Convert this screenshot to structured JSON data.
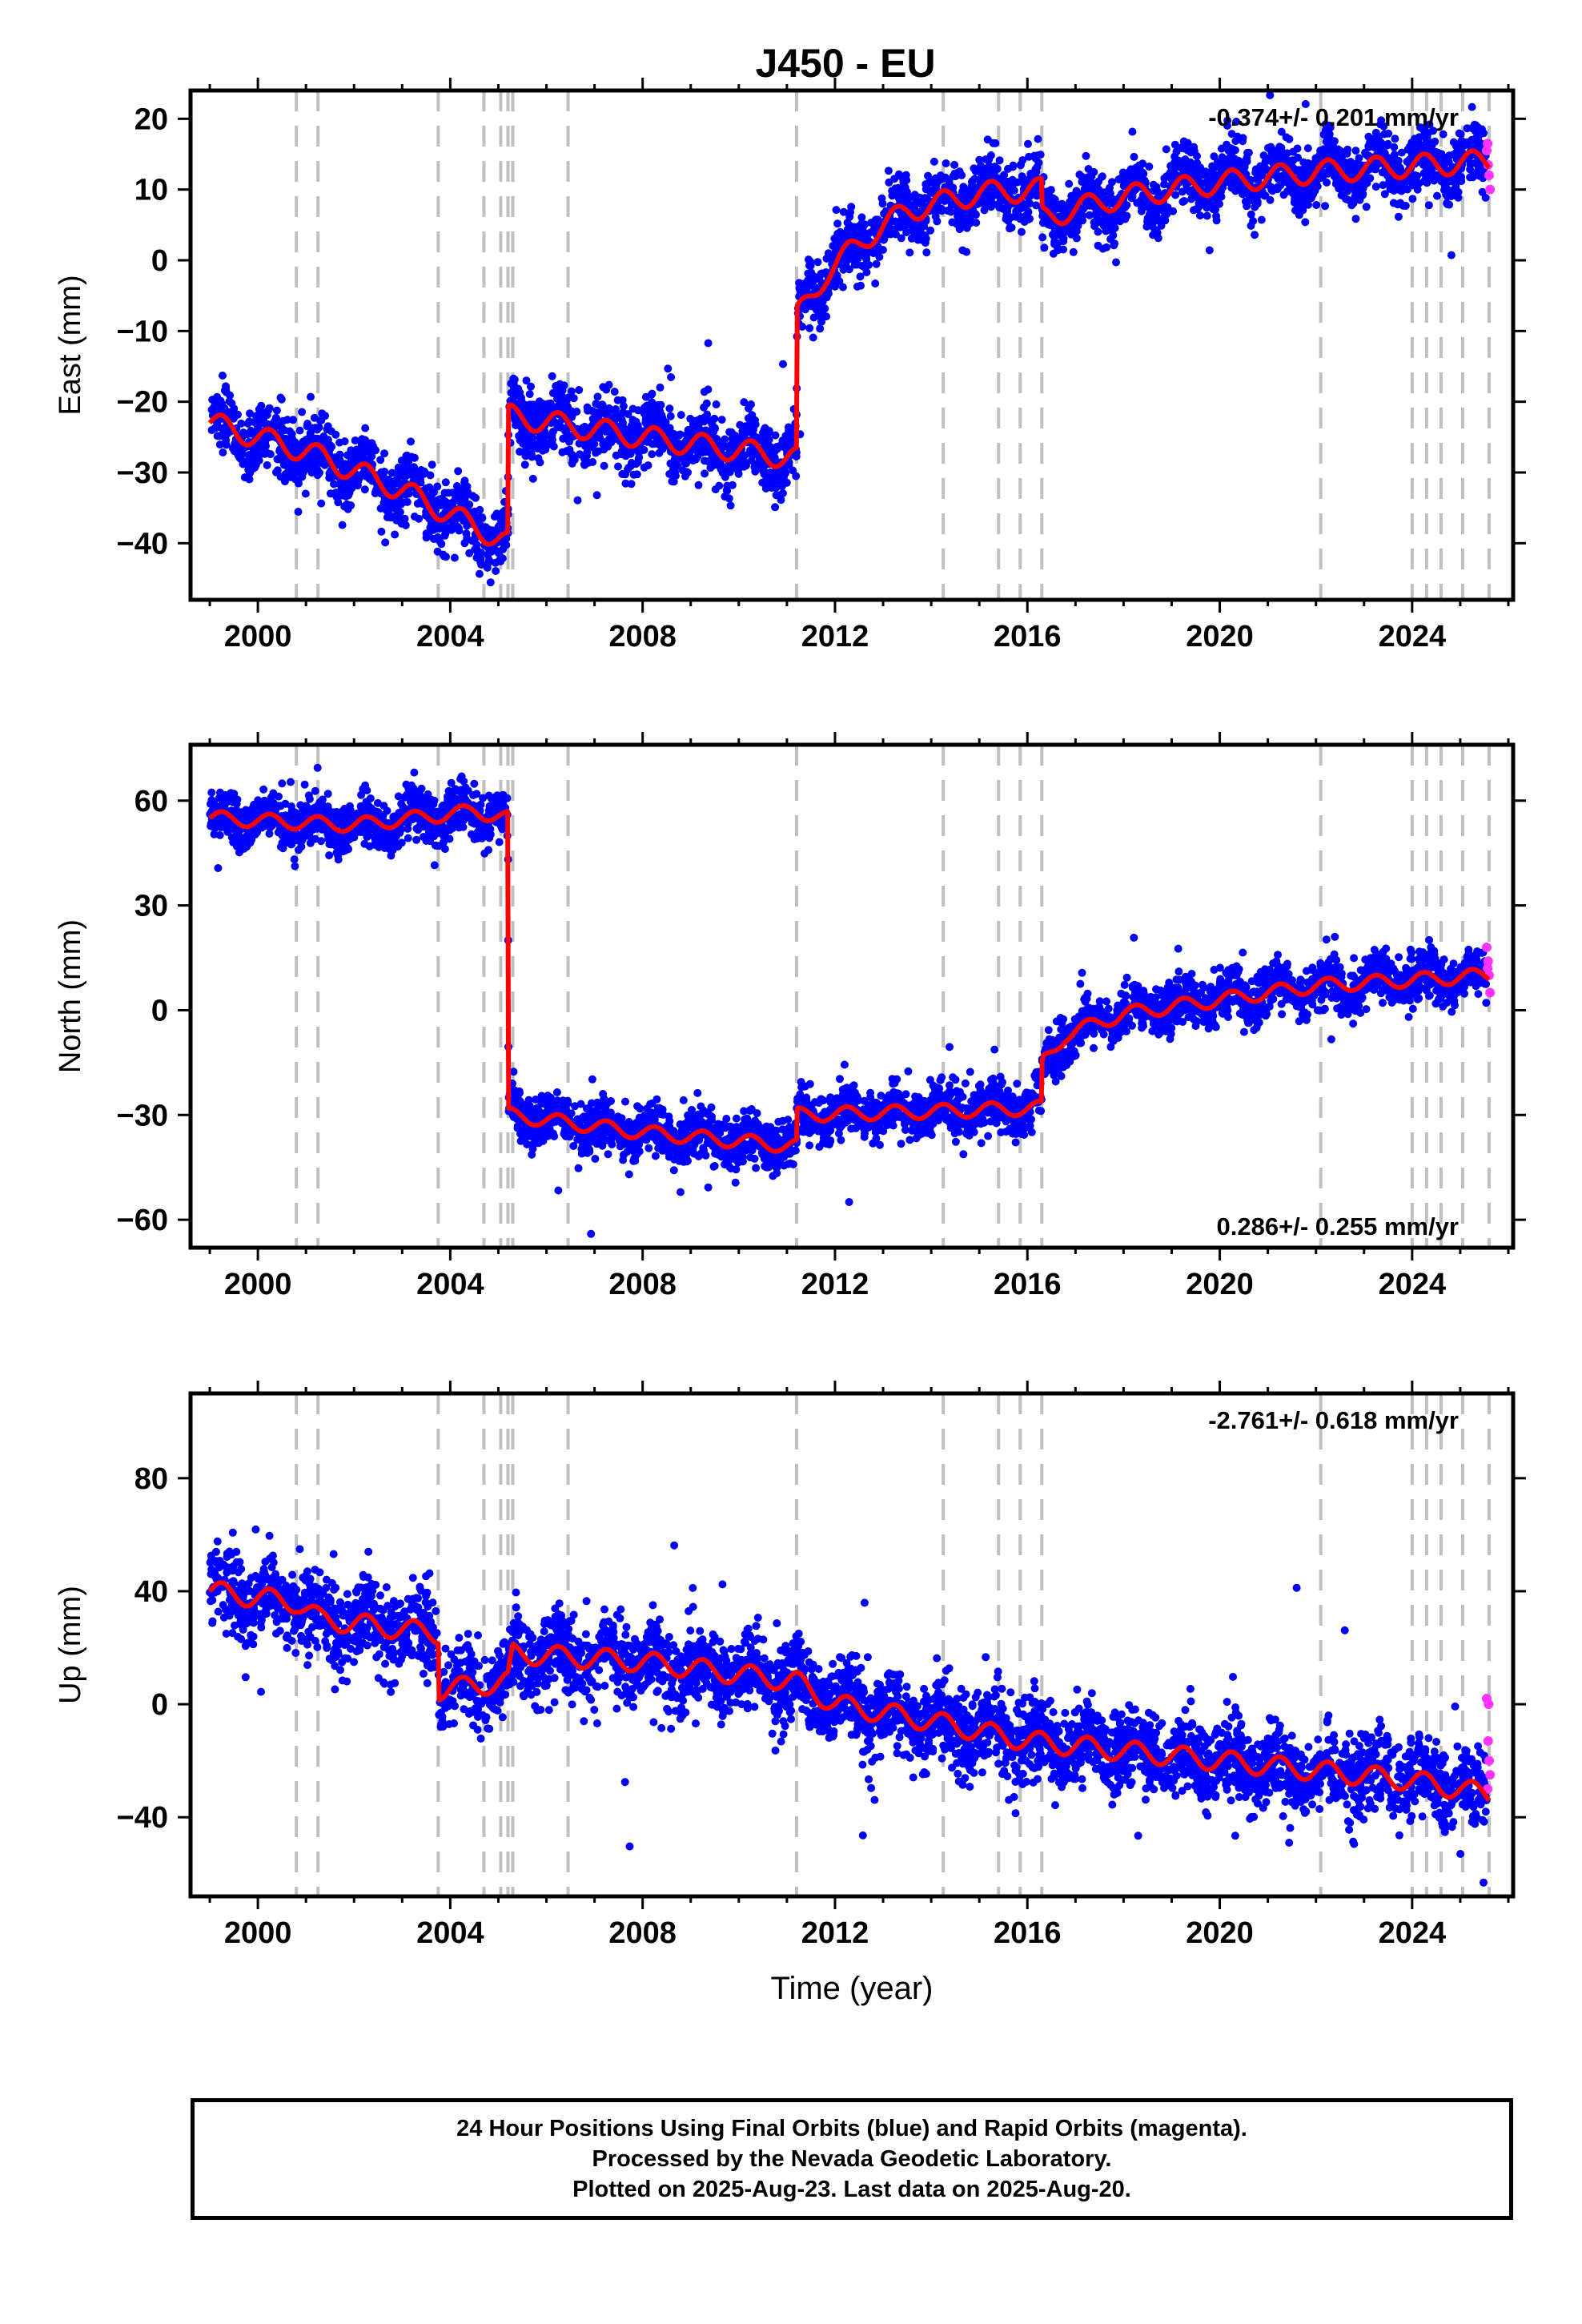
{
  "figure": {
    "title": "J450 - EU",
    "footer_lines": [
      "24 Hour Positions Using Final Orbits (blue) and Rapid Orbits (magenta).",
      "Processed by the Nevada Geodetic Laboratory.",
      "Plotted on 2025-Aug-23. Last data on 2025-Aug-20."
    ],
    "colors": {
      "final": "#0000ff",
      "rapid": "#ff33ff",
      "model": "#ff0000",
      "events": "#bfbfbf"
    }
  },
  "chart_data": [
    {
      "type": "scatter",
      "ylabel": "East (mm)",
      "xlabel": "",
      "rate_label": "-0.374+/- 0.201 mm/yr",
      "rate_position": "top-right",
      "xlim": [
        1998.6,
        2026.1
      ],
      "ylim": [
        -48,
        24
      ],
      "xticks": [
        2000,
        2004,
        2008,
        2012,
        2016,
        2020,
        2024
      ],
      "yticks": [
        -40,
        -30,
        -20,
        -10,
        0,
        10,
        20
      ],
      "event_lines": [
        2000.8,
        2001.25,
        2003.75,
        2004.7,
        2005.05,
        2005.2,
        2005.3,
        2006.45,
        2011.2,
        2014.25,
        2015.4,
        2015.85,
        2016.3,
        2022.1,
        2024.0,
        2024.3,
        2024.6,
        2025.05,
        2025.6
      ],
      "model_trend": [
        [
          1999.0,
          -23
        ],
        [
          2001.0,
          -27
        ],
        [
          2003.0,
          -32.5
        ],
        [
          2005.2,
          -40
        ],
        [
          2005.21,
          -22
        ],
        [
          2008.0,
          -25
        ],
        [
          2011.2,
          -28
        ],
        [
          2011.21,
          -8
        ],
        [
          2011.8,
          -2
        ],
        [
          2012.6,
          3
        ],
        [
          2013.5,
          7
        ],
        [
          2015.0,
          9.5
        ],
        [
          2016.3,
          10
        ],
        [
          2016.31,
          6
        ],
        [
          2018.0,
          9
        ],
        [
          2020.0,
          11
        ],
        [
          2022.0,
          12.5
        ],
        [
          2025.6,
          14
        ]
      ],
      "seasonal_amplitude": 2.0,
      "scatter_sigma": 2.2,
      "rapid_points": [
        [
          2025.55,
          15.5
        ],
        [
          2025.58,
          13.5
        ],
        [
          2025.6,
          12
        ],
        [
          2025.62,
          10
        ],
        [
          2025.57,
          16.5
        ]
      ]
    },
    {
      "type": "scatter",
      "ylabel": "North (mm)",
      "xlabel": "",
      "rate_label": "0.286+/- 0.255 mm/yr",
      "rate_position": "bottom-right",
      "xlim": [
        1998.6,
        2026.1
      ],
      "ylim": [
        -68,
        76
      ],
      "xticks": [
        2000,
        2004,
        2008,
        2012,
        2016,
        2020,
        2024
      ],
      "yticks": [
        -60,
        -30,
        0,
        30,
        60
      ],
      "event_lines": [
        2000.8,
        2001.25,
        2003.75,
        2004.7,
        2005.05,
        2005.2,
        2005.3,
        2006.45,
        2011.2,
        2014.25,
        2015.4,
        2015.85,
        2016.3,
        2022.1,
        2024.0,
        2024.3,
        2024.6,
        2025.05,
        2025.6
      ],
      "model_trend": [
        [
          1999.0,
          55
        ],
        [
          2002.0,
          53
        ],
        [
          2004.5,
          57
        ],
        [
          2005.2,
          55
        ],
        [
          2005.21,
          -30
        ],
        [
          2008.0,
          -35
        ],
        [
          2011.2,
          -39
        ],
        [
          2011.21,
          -30
        ],
        [
          2014.0,
          -29
        ],
        [
          2016.3,
          -28
        ],
        [
          2016.31,
          -15
        ],
        [
          2016.8,
          -7
        ],
        [
          2018.0,
          -1
        ],
        [
          2020.0,
          3
        ],
        [
          2022.0,
          7
        ],
        [
          2025.6,
          10
        ]
      ],
      "seasonal_amplitude": 2.5,
      "scatter_sigma": 3.5,
      "rapid_points": [
        [
          2025.55,
          18
        ],
        [
          2025.58,
          14
        ],
        [
          2025.6,
          10
        ],
        [
          2025.62,
          5
        ],
        [
          2025.57,
          12
        ]
      ]
    },
    {
      "type": "scatter",
      "ylabel": "Up (mm)",
      "xlabel": "Time (year)",
      "rate_label": "-2.761+/- 0.618 mm/yr",
      "rate_position": "top-right",
      "xlim": [
        1998.6,
        2026.1
      ],
      "ylim": [
        -68,
        110
      ],
      "xticks": [
        2000,
        2004,
        2008,
        2012,
        2016,
        2020,
        2024
      ],
      "yticks": [
        -40,
        0,
        40,
        80
      ],
      "event_lines": [
        2000.8,
        2001.25,
        2003.75,
        2004.7,
        2005.05,
        2005.2,
        2005.3,
        2006.45,
        2011.2,
        2014.25,
        2015.4,
        2015.85,
        2016.3,
        2022.1,
        2024.0,
        2024.3,
        2024.6,
        2025.05,
        2025.6
      ],
      "model_trend": [
        [
          1999.0,
          40
        ],
        [
          2000.8,
          36
        ],
        [
          2001.3,
          30
        ],
        [
          2003.75,
          25
        ],
        [
          2003.76,
          5
        ],
        [
          2005.2,
          8
        ],
        [
          2005.3,
          18
        ],
        [
          2008.0,
          15
        ],
        [
          2011.2,
          8
        ],
        [
          2012.0,
          0
        ],
        [
          2014.0,
          -6
        ],
        [
          2016.0,
          -13
        ],
        [
          2020.0,
          -20
        ],
        [
          2024.0,
          -27
        ],
        [
          2025.6,
          -32
        ]
      ],
      "seasonal_amplitude": 4.5,
      "scatter_sigma": 7.0,
      "rapid_points": [
        [
          2025.55,
          2
        ],
        [
          2025.58,
          -13
        ],
        [
          2025.6,
          -20
        ],
        [
          2025.62,
          -25
        ],
        [
          2025.57,
          -30
        ],
        [
          2025.59,
          0
        ]
      ]
    }
  ]
}
